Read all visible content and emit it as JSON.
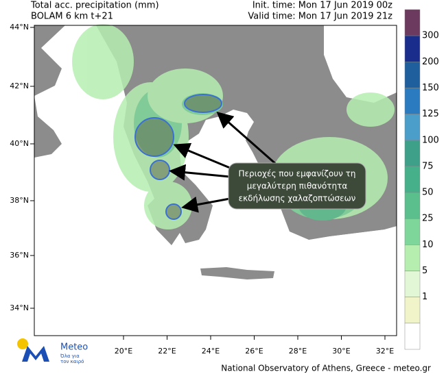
{
  "header": {
    "title": "Total acc. precipitation (mm)",
    "model": "BOLAM 6 km t+21",
    "init_time": "Init. time: Mon 17 Jun 2019 00z",
    "valid_time": "Valid time: Mon 17 Jun 2019 21z"
  },
  "map": {
    "lat_labels": [
      "44°N",
      "42°N",
      "40°N",
      "38°N",
      "36°N",
      "34°N"
    ],
    "lon_labels": [
      "20°E",
      "22°E",
      "24°E",
      "26°E",
      "28°E",
      "30°E",
      "32°E"
    ]
  },
  "colorbar": {
    "labels": [
      "300",
      "200",
      "150",
      "125",
      "100",
      "75",
      "50",
      "25",
      "10",
      "5",
      "1"
    ]
  },
  "annotation": {
    "lines": [
      "Περιοχές που εμφανίζουν τη",
      "μεγαλύτερη πιθανότητα",
      "εκδήλωσης χαλαζοπτώσεων"
    ]
  },
  "logo": {
    "name": "Meteo",
    "tagline": [
      "Όλα για",
      "τον καιρό"
    ]
  },
  "footer": "National Observatory of Athens, Greece - meteo.gr"
}
